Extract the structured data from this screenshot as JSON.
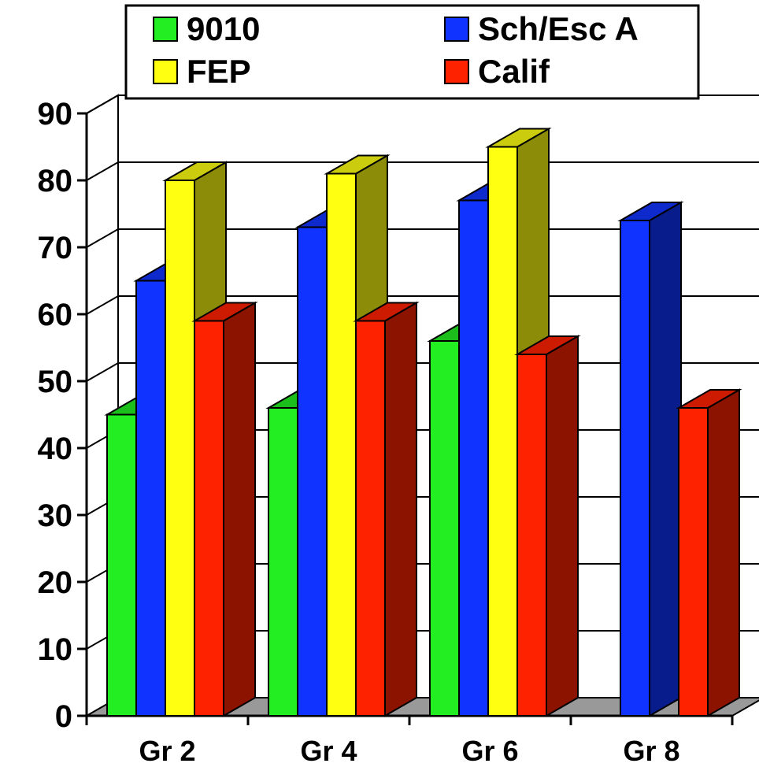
{
  "chart_data": {
    "type": "bar",
    "title": "",
    "xlabel": "",
    "ylabel": "",
    "ylim": [
      0,
      90
    ],
    "yticks": [
      0,
      10,
      20,
      30,
      40,
      50,
      60,
      70,
      80,
      90
    ],
    "grid": true,
    "legend_position": "top",
    "categories": [
      "Gr 2",
      "Gr 4",
      "Gr 6",
      "Gr 8"
    ],
    "series": [
      {
        "name": "9010",
        "color": "#22ee22",
        "values": [
          45,
          46,
          56,
          null
        ]
      },
      {
        "name": "Sch/Esc A",
        "color": "#1133ff",
        "values": [
          65,
          73,
          77,
          74
        ]
      },
      {
        "name": "FEP",
        "color": "#ffff11",
        "values": [
          80,
          81,
          85,
          null
        ]
      },
      {
        "name": "Calif",
        "color": "#ff2200",
        "values": [
          59,
          59,
          54,
          46
        ]
      }
    ]
  }
}
